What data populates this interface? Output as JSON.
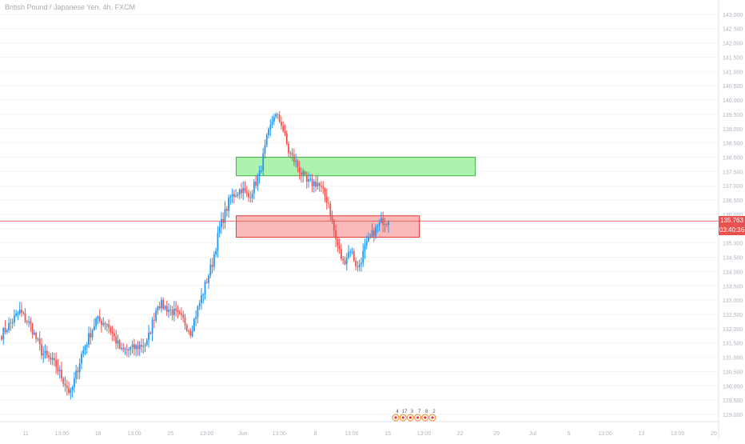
{
  "header": {
    "title": "British Pound / Japanese Yen, 4h, FXCM"
  },
  "colors": {
    "up": "#2196f3",
    "down": "#ef5350",
    "supply_zone": "#90ee90",
    "demand_zone": "#f8a1a1",
    "price_line": "#ef5350",
    "badge": "#e8514f"
  },
  "price_badge": {
    "price": "135.763",
    "countdown": "03:40:36"
  },
  "events": {
    "labels": [
      "4",
      "17",
      "3",
      "7",
      "8",
      "2"
    ]
  },
  "chart_data": {
    "type": "candlestick",
    "y_range": [
      128.75,
      143.5
    ],
    "y_ticks": [
      "143.000",
      "142.500",
      "142.000",
      "141.500",
      "141.000",
      "140.500",
      "140.000",
      "139.500",
      "139.000",
      "138.500",
      "138.000",
      "137.500",
      "137.000",
      "136.500",
      "136.000",
      "135.500",
      "135.000",
      "134.500",
      "134.000",
      "133.500",
      "133.000",
      "132.500",
      "132.000",
      "131.500",
      "131.000",
      "130.500",
      "130.000",
      "129.500",
      "129.000"
    ],
    "x_ticks": [
      "11",
      "13:00",
      "18",
      "13:00",
      "25",
      "13:00",
      "Jun",
      "13:00",
      "8",
      "13:00",
      "15",
      "13:00",
      "22",
      "29",
      "Jul",
      "6",
      "13:00",
      "13",
      "13:00",
      "20"
    ],
    "current_price": 135.763,
    "zones": [
      {
        "name": "supply",
        "top": 138.0,
        "bottom": 137.35,
        "x_start": 0.317,
        "x_end": 0.638
      },
      {
        "name": "demand",
        "top": 135.95,
        "bottom": 135.2,
        "x_start": 0.317,
        "x_end": 0.563
      }
    ],
    "anchors": [
      [
        0,
        131.8
      ],
      [
        10,
        132.6
      ],
      [
        16,
        132.1
      ],
      [
        22,
        131.2
      ],
      [
        30,
        130.7
      ],
      [
        38,
        129.7
      ],
      [
        44,
        131.1
      ],
      [
        52,
        132.3
      ],
      [
        58,
        132.2
      ],
      [
        66,
        131.2
      ],
      [
        72,
        131.3
      ],
      [
        80,
        131.5
      ],
      [
        86,
        132.9
      ],
      [
        94,
        132.6
      ],
      [
        100,
        132.3
      ],
      [
        104,
        131.9
      ],
      [
        110,
        133.1
      ],
      [
        116,
        134.3
      ],
      [
        120,
        135.5
      ],
      [
        126,
        136.6
      ],
      [
        132,
        136.9
      ],
      [
        136,
        136.6
      ],
      [
        142,
        137.4
      ],
      [
        146,
        138.6
      ],
      [
        150,
        139.5
      ],
      [
        154,
        139.2
      ],
      [
        158,
        138.2
      ],
      [
        162,
        137.8
      ],
      [
        168,
        137.1
      ],
      [
        174,
        137.1
      ],
      [
        180,
        136.4
      ],
      [
        184,
        135.1
      ],
      [
        188,
        134.3
      ],
      [
        192,
        134.8
      ],
      [
        196,
        134.1
      ],
      [
        200,
        134.8
      ],
      [
        205,
        135.4
      ],
      [
        210,
        135.8
      ],
      [
        213,
        135.76
      ]
    ]
  }
}
